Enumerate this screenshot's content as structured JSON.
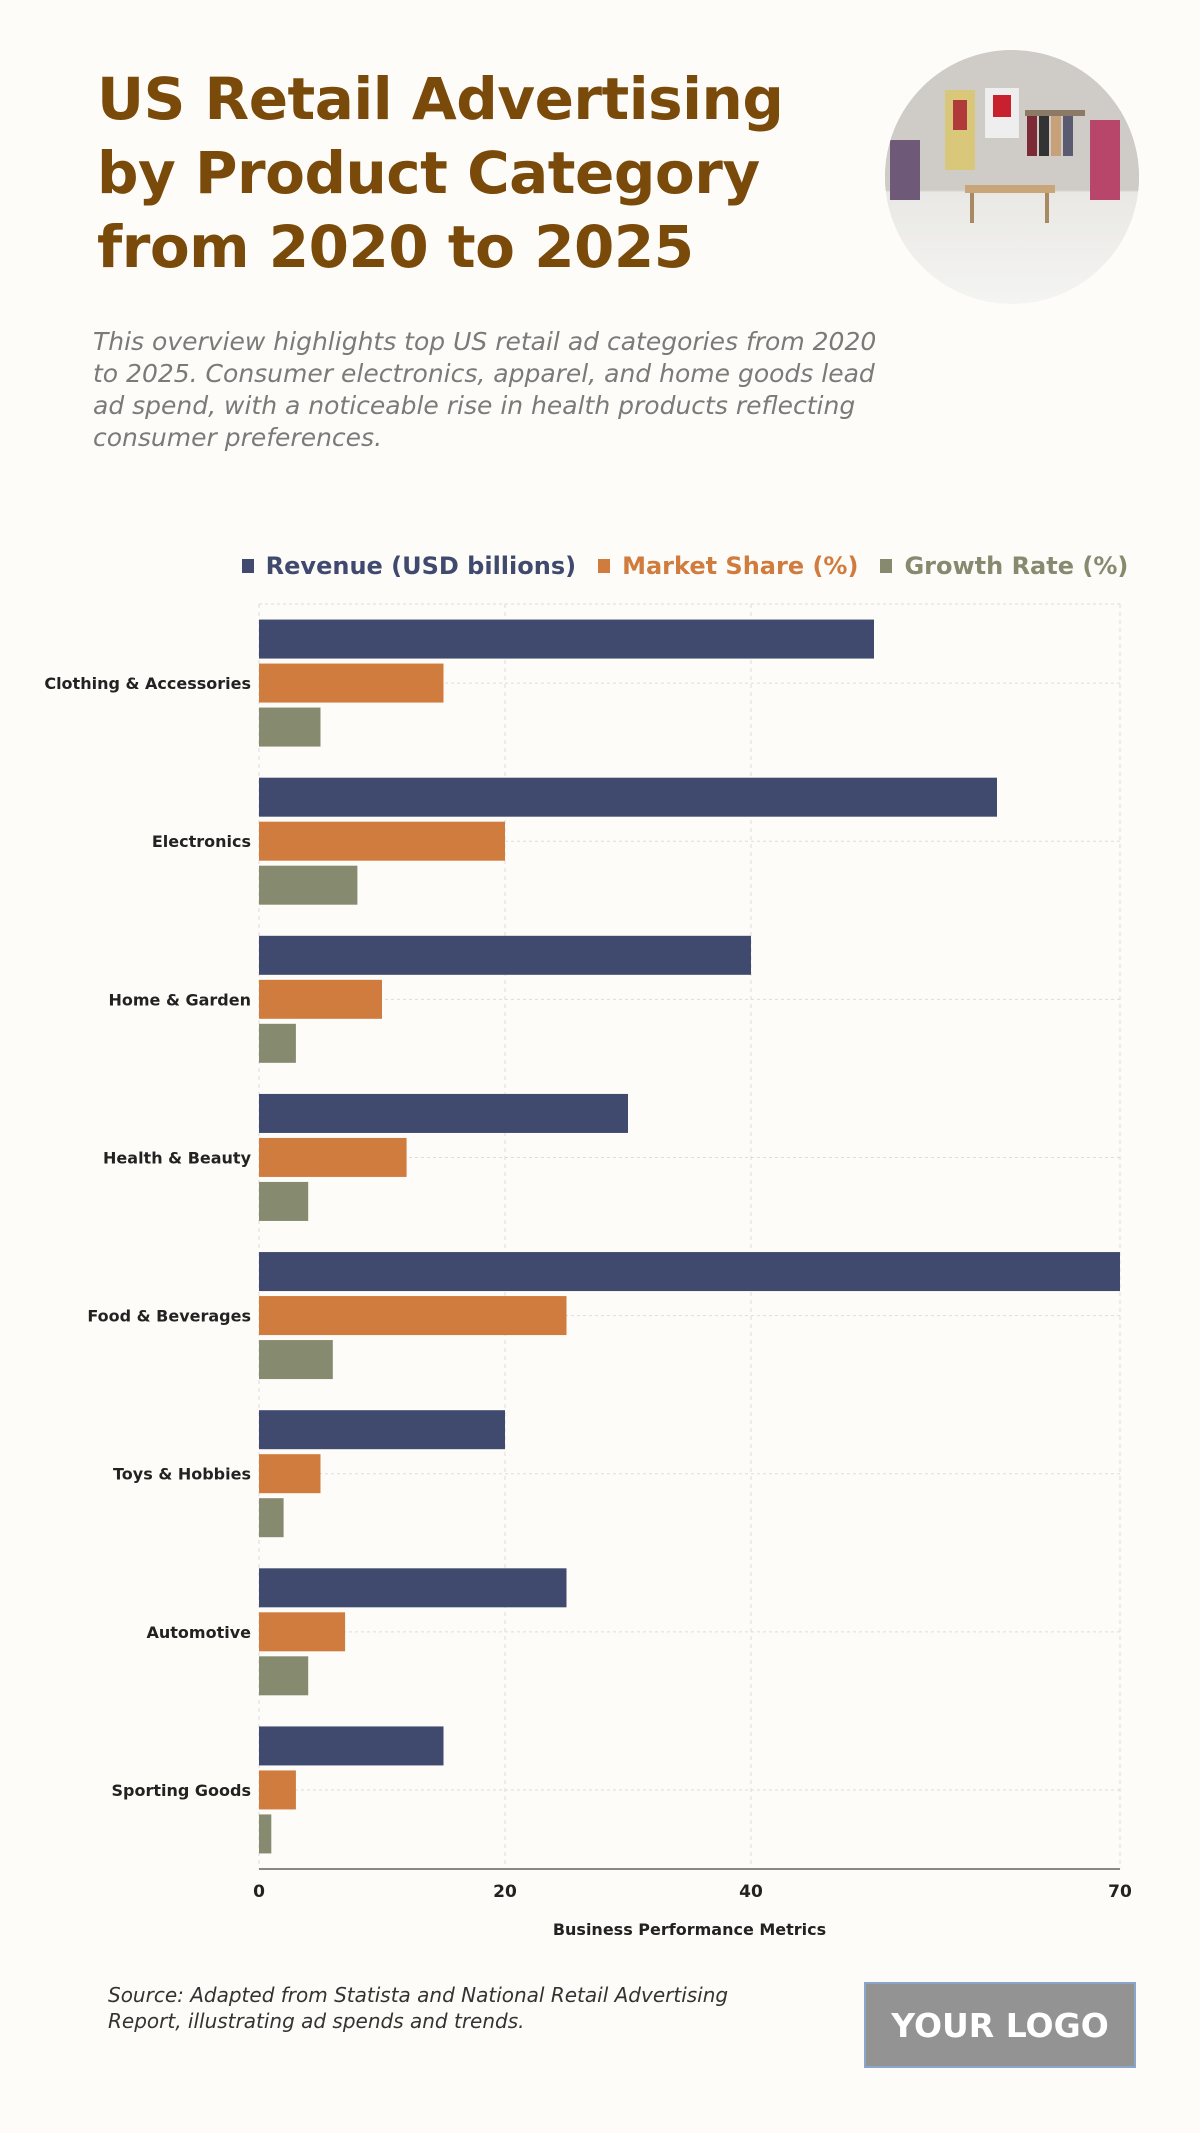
{
  "header": {
    "title": "US Retail Advertising by Product Category from 2020 to 2025",
    "subtitle": "This overview highlights top US retail ad categories from 2020 to 2025. Consumer electronics, apparel, and home goods lead ad spend, with a noticeable rise in health products reflecting consumer preferences."
  },
  "colors": {
    "title": "#7a4a0a",
    "revenue": "#3f4a6e",
    "market_share": "#d07c3e",
    "growth_rate": "#868a6e",
    "background": "#fdfcf8"
  },
  "chart_data": {
    "type": "bar",
    "orientation": "horizontal",
    "categories": [
      "Clothing & Accessories",
      "Electronics",
      "Home & Garden",
      "Health & Beauty",
      "Food & Beverages",
      "Toys & Hobbies",
      "Automotive",
      "Sporting Goods"
    ],
    "series": [
      {
        "name": "Revenue (USD billions)",
        "color": "#3f4a6e",
        "values": [
          50,
          60,
          40,
          30,
          70,
          20,
          25,
          15
        ]
      },
      {
        "name": "Market Share (%)",
        "color": "#d07c3e",
        "values": [
          15,
          20,
          10,
          12,
          25,
          5,
          7,
          3
        ]
      },
      {
        "name": "Growth Rate (%)",
        "color": "#868a6e",
        "values": [
          5,
          8,
          3,
          4,
          6,
          2,
          4,
          1
        ]
      }
    ],
    "xlabel": "Business Performance Metrics",
    "ylabel": "",
    "xlim": [
      0,
      70
    ],
    "xticks": [
      0,
      20,
      40,
      70
    ],
    "xtick_labels": [
      "0",
      "20",
      "40",
      "70"
    ],
    "grid": true,
    "legend_placement": "top"
  },
  "footer": {
    "source": "Source: Adapted from Statista and National Retail Advertising Report, illustrating ad spends and trends.",
    "logo": "YOUR LOGO"
  }
}
